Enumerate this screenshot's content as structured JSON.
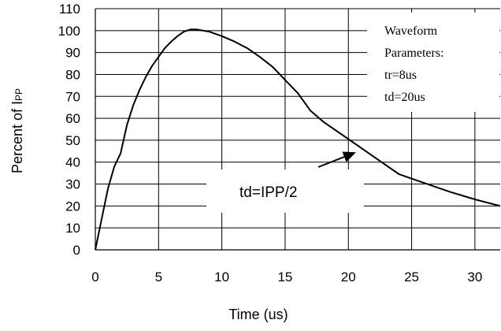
{
  "chart_data": {
    "type": "line",
    "xlabel": "Time (us)",
    "ylabel": "Percent of I",
    "ylabel_subscript": "PP",
    "xlim": [
      0,
      32
    ],
    "ylim": [
      0,
      110
    ],
    "x_ticks": [
      0,
      5,
      10,
      15,
      20,
      25,
      30
    ],
    "y_ticks": [
      0,
      10,
      20,
      30,
      40,
      50,
      60,
      70,
      80,
      90,
      100,
      110
    ],
    "grid": true,
    "series": [
      {
        "color": "#000000",
        "x": [
          0,
          0.5,
          1.0,
          1.5,
          2.0,
          2.5,
          3.0,
          3.5,
          4.0,
          4.5,
          5.0,
          5.5,
          6.0,
          6.5,
          7.0,
          7.5,
          8.0,
          9.0,
          10.0,
          11.0,
          12.0,
          13.0,
          14.0,
          15.0,
          16.0,
          17.0,
          18.0,
          20.0,
          22.0,
          24.0,
          26.0,
          28.0,
          30.0,
          32.0
        ],
        "y": [
          0,
          14,
          28,
          38,
          44,
          57,
          66,
          73,
          79,
          84,
          88,
          92,
          95,
          97.5,
          99.5,
          100.5,
          100.5,
          99.5,
          97.5,
          95,
          92,
          88,
          83.5,
          77.5,
          71.5,
          63.5,
          58.5,
          50.5,
          42.5,
          34.5,
          30.5,
          26.5,
          23,
          20
        ]
      }
    ],
    "legend_box": [
      "Waveform",
      "Parameters:",
      "tr=8us",
      "td=20us"
    ],
    "annotation": "td=IPP/2",
    "annotation_arrow_target": {
      "x": 20.6,
      "y": 44.5
    }
  }
}
